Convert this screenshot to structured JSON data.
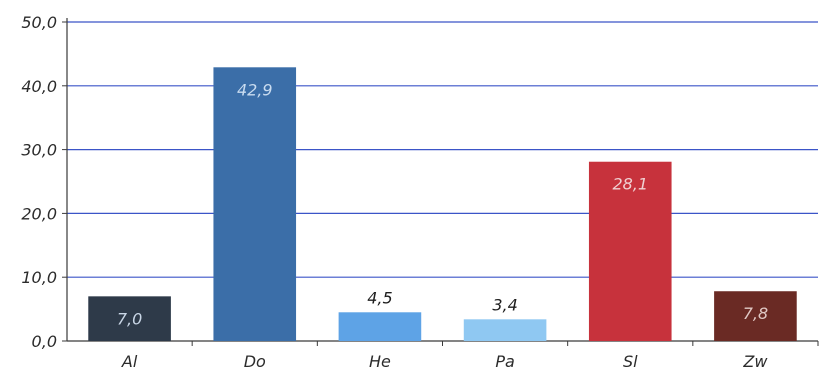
{
  "chart_data": {
    "type": "bar",
    "title": "",
    "xlabel": "",
    "ylabel": "",
    "categories": [
      "Al",
      "Do",
      "He",
      "Pa",
      "Sl",
      "Zw"
    ],
    "values": [
      7.0,
      42.9,
      4.5,
      3.4,
      28.1,
      7.8
    ],
    "value_labels": [
      "7,0",
      "42,9",
      "4,5",
      "3,4",
      "28,1",
      "7,8"
    ],
    "bar_colors": [
      "#2e3a49",
      "#3b6ea8",
      "#5ea3e6",
      "#8fc8f2",
      "#c7323c",
      "#6a2a24"
    ],
    "label_colors": [
      "#c9d6e6",
      "#c9dcf0",
      "#1e1e1e",
      "#1e1e1e",
      "#f0d0d2",
      "#e0c8c4"
    ],
    "label_inside": [
      true,
      true,
      false,
      false,
      true,
      true
    ],
    "ylim": [
      0,
      50
    ],
    "yticks": [
      0,
      10,
      20,
      30,
      40,
      50
    ],
    "ytick_labels": [
      "0,0",
      "10,0",
      "20,0",
      "30,0",
      "40,0",
      "50,0"
    ],
    "grid": true,
    "grid_color": "#3b55c8",
    "legend": "none"
  }
}
